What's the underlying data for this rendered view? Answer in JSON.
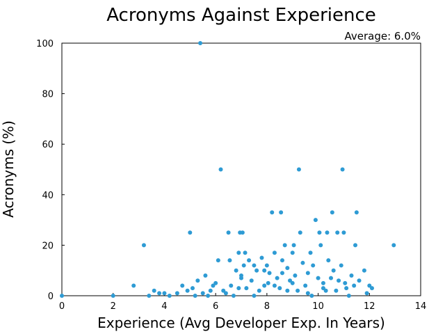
{
  "chart_data": {
    "type": "scatter",
    "title": "Acronyms Against Experience",
    "annotation": "Average: 6.0%",
    "xlabel": "Experience (Avg Developer Exp. In Years)",
    "ylabel": "Acronyms (%)",
    "xlim": [
      0,
      14
    ],
    "ylim": [
      0,
      100
    ],
    "xticks": [
      0,
      2,
      4,
      6,
      8,
      10,
      12,
      14
    ],
    "yticks": [
      0,
      20,
      40,
      60,
      80,
      100
    ],
    "grid": false,
    "marker_color": "#2e9bd4",
    "points": [
      [
        0,
        0
      ],
      [
        2,
        0
      ],
      [
        2.8,
        4
      ],
      [
        3.2,
        20
      ],
      [
        3.4,
        0
      ],
      [
        3.6,
        2
      ],
      [
        3.8,
        1
      ],
      [
        4.0,
        1
      ],
      [
        4.2,
        0
      ],
      [
        4.5,
        1
      ],
      [
        4.7,
        4
      ],
      [
        4.9,
        2
      ],
      [
        5.0,
        25
      ],
      [
        5.1,
        3
      ],
      [
        5.2,
        0
      ],
      [
        5.3,
        6
      ],
      [
        5.4,
        100
      ],
      [
        5.5,
        1
      ],
      [
        5.6,
        8
      ],
      [
        5.7,
        0
      ],
      [
        5.8,
        2
      ],
      [
        5.9,
        4
      ],
      [
        6.0,
        5
      ],
      [
        6.1,
        14
      ],
      [
        6.2,
        50
      ],
      [
        6.3,
        2
      ],
      [
        6.4,
        1
      ],
      [
        6.5,
        25
      ],
      [
        6.55,
        14
      ],
      [
        6.6,
        4
      ],
      [
        6.7,
        0
      ],
      [
        6.8,
        10
      ],
      [
        6.9,
        17
      ],
      [
        6.95,
        25
      ],
      [
        7.0,
        7
      ],
      [
        7.05,
        25
      ],
      [
        7.1,
        12
      ],
      [
        7.15,
        17
      ],
      [
        7.2,
        3
      ],
      [
        7.3,
        14
      ],
      [
        7.4,
        6
      ],
      [
        7.5,
        0
      ],
      [
        7.6,
        10
      ],
      [
        7.7,
        2
      ],
      [
        7.8,
        15
      ],
      [
        7.9,
        4
      ],
      [
        8.0,
        12
      ],
      [
        8.05,
        5
      ],
      [
        8.1,
        9
      ],
      [
        8.2,
        33
      ],
      [
        8.3,
        17
      ],
      [
        8.4,
        7
      ],
      [
        8.5,
        3
      ],
      [
        8.55,
        33
      ],
      [
        8.6,
        14
      ],
      [
        8.7,
        20
      ],
      [
        8.8,
        11
      ],
      [
        8.9,
        6
      ],
      [
        9.0,
        17
      ],
      [
        9.05,
        20
      ],
      [
        9.1,
        8
      ],
      [
        9.2,
        2
      ],
      [
        9.25,
        50
      ],
      [
        9.3,
        25
      ],
      [
        9.4,
        13
      ],
      [
        9.5,
        4
      ],
      [
        9.6,
        9
      ],
      [
        9.7,
        17
      ],
      [
        9.75,
        0
      ],
      [
        9.8,
        12
      ],
      [
        9.9,
        30
      ],
      [
        10.0,
        7
      ],
      [
        10.05,
        25
      ],
      [
        10.1,
        20
      ],
      [
        10.2,
        5
      ],
      [
        10.3,
        2
      ],
      [
        10.35,
        25
      ],
      [
        10.4,
        14
      ],
      [
        10.5,
        7
      ],
      [
        10.55,
        33
      ],
      [
        10.6,
        10
      ],
      [
        10.7,
        2
      ],
      [
        10.75,
        25
      ],
      [
        10.8,
        6
      ],
      [
        10.9,
        12
      ],
      [
        10.95,
        50
      ],
      [
        11.0,
        25
      ],
      [
        11.05,
        5
      ],
      [
        11.1,
        3
      ],
      [
        11.2,
        0
      ],
      [
        11.3,
        8
      ],
      [
        11.4,
        4
      ],
      [
        11.45,
        20
      ],
      [
        11.5,
        33
      ],
      [
        11.6,
        6
      ],
      [
        11.8,
        10
      ],
      [
        11.9,
        1
      ],
      [
        12.0,
        4
      ],
      [
        12.1,
        3
      ],
      [
        12.95,
        20
      ],
      [
        7.0,
        8
      ],
      [
        7.5,
        12
      ],
      [
        8.3,
        4
      ],
      [
        8.8,
        2
      ],
      [
        9.6,
        1
      ],
      [
        10.2,
        3
      ],
      [
        9.0,
        5
      ],
      [
        8.6,
        9
      ],
      [
        6.9,
        3
      ],
      [
        7.9,
        10
      ]
    ]
  }
}
